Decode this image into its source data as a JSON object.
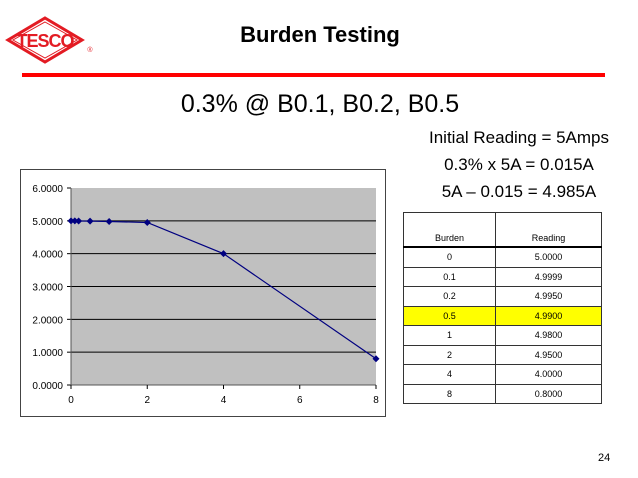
{
  "logo": {
    "text": "TESCO",
    "registered": "®",
    "color": "#e31b23"
  },
  "title": "Burden Testing",
  "subtitle": "0.3% @ B0.1, B0.2, B0.5",
  "calculations": [
    "Initial Reading = 5Amps",
    "0.3% x 5A = 0.015A",
    "5A – 0.015 = 4.985A"
  ],
  "table": {
    "headers": [
      "Burden",
      "Reading"
    ],
    "rows": [
      [
        "0",
        "5.0000"
      ],
      [
        "0.1",
        "4.9999"
      ],
      [
        "0.2",
        "4.9950"
      ],
      [
        "0.5",
        "4.9900"
      ],
      [
        "1",
        "4.9800"
      ],
      [
        "2",
        "4.9500"
      ],
      [
        "4",
        "4.0000"
      ],
      [
        "8",
        "0.8000"
      ]
    ],
    "highlight_row": 3,
    "highlight_color": "#ffff00"
  },
  "page_number": "24",
  "chart_data": {
    "type": "line",
    "title": "",
    "xlabel": "",
    "ylabel": "",
    "x": [
      0,
      0.1,
      0.2,
      0.5,
      1,
      2,
      4,
      8
    ],
    "series": [
      {
        "name": "Reading",
        "values": [
          5.0,
          4.9999,
          4.995,
          4.99,
          4.98,
          4.95,
          4.0,
          0.8
        ],
        "color": "#000080"
      }
    ],
    "xlim": [
      0,
      8
    ],
    "ylim": [
      0,
      6
    ],
    "x_ticks": [
      "0",
      "2",
      "4",
      "6",
      "8"
    ],
    "y_ticks": [
      "0.0000",
      "1.0000",
      "2.0000",
      "3.0000",
      "4.0000",
      "5.0000",
      "6.0000"
    ],
    "grid": true,
    "plot_background": "#c0c0c0",
    "legend": "none"
  }
}
